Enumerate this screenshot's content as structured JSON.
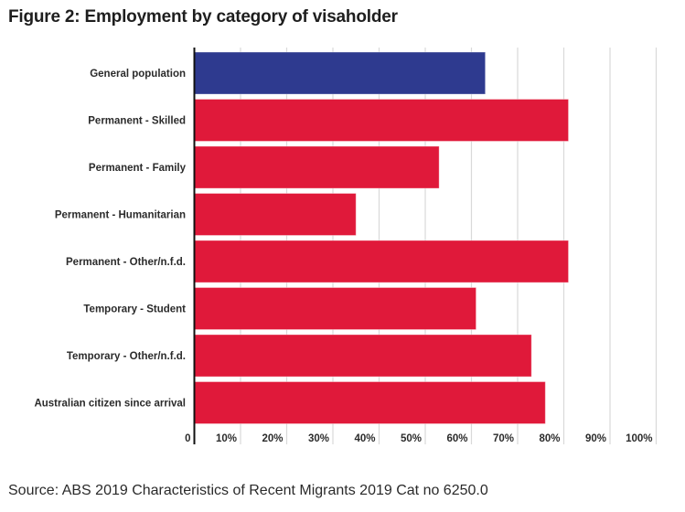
{
  "chart_data": {
    "type": "bar",
    "orientation": "horizontal",
    "title": "Figure 2: Employment by category of visaholder",
    "xlabel": "",
    "ylabel": "",
    "categories": [
      "General population",
      "Permanent - Skilled",
      "Permanent - Family",
      "Permanent - Humanitarian",
      "Permanent - Other/n.f.d.",
      "Temporary - Student",
      "Temporary - Other/n.f.d.",
      "Australian citizen since arrival"
    ],
    "values": [
      63,
      81,
      53,
      35,
      81,
      61,
      73,
      76
    ],
    "bar_colors": [
      "#2e3a8f",
      "#e0193a",
      "#e0193a",
      "#e0193a",
      "#e0193a",
      "#e0193a",
      "#e0193a",
      "#e0193a"
    ],
    "xlim": [
      0,
      100
    ],
    "x_ticks": [
      0,
      10,
      20,
      30,
      40,
      50,
      60,
      70,
      80,
      90,
      100
    ],
    "x_tick_labels": [
      "0",
      "10%",
      "20%",
      "30%",
      "40%",
      "50%",
      "60%",
      "70%",
      "80%",
      "90%",
      "100%"
    ],
    "grid": true,
    "legend": "none",
    "source": "Source: ABS 2019 Characteristics of Recent Migrants 2019  Cat no 6250.0"
  }
}
